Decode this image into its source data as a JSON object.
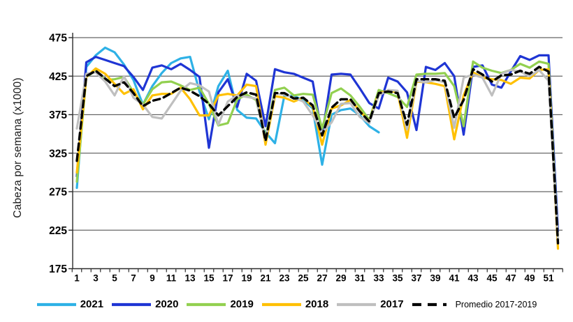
{
  "chart_data": {
    "type": "line",
    "title": "",
    "ylabel": "Cabeza por semana (x1000)",
    "xlabel": "",
    "ylim": [
      175,
      475
    ],
    "yticks": [
      175,
      225,
      275,
      325,
      375,
      425,
      475
    ],
    "xticks": [
      1,
      3,
      5,
      7,
      9,
      11,
      13,
      15,
      17,
      19,
      21,
      23,
      25,
      27,
      29,
      31,
      33,
      35,
      37,
      39,
      41,
      43,
      45,
      47,
      49,
      51
    ],
    "x": [
      1,
      2,
      3,
      4,
      5,
      6,
      7,
      8,
      9,
      10,
      11,
      12,
      13,
      14,
      15,
      16,
      17,
      18,
      19,
      20,
      21,
      22,
      23,
      24,
      25,
      26,
      27,
      28,
      29,
      30,
      31,
      32,
      33,
      34,
      35,
      36,
      37,
      38,
      39,
      40,
      41,
      42,
      43,
      44,
      45,
      46,
      47,
      48,
      49,
      50,
      51,
      52
    ],
    "grid": "horizontal",
    "legend_position": "bottom",
    "series": [
      {
        "name": "2021",
        "color": "#2EB1E6",
        "dash": false,
        "values": [
          280,
          437,
          452,
          462,
          456,
          440,
          420,
          388,
          412,
          429,
          442,
          448,
          450,
          405,
          369,
          412,
          432,
          381,
          371,
          370,
          352,
          338,
          400,
          399,
          394,
          383,
          310,
          375,
          381,
          383,
          374,
          360,
          352
        ]
      },
      {
        "name": "2020",
        "color": "#1F35D4",
        "dash": false,
        "values": [
          295,
          443,
          450,
          446,
          442,
          438,
          424,
          407,
          436,
          439,
          434,
          441,
          433,
          424,
          332,
          404,
          421,
          385,
          428,
          419,
          360,
          434,
          430,
          428,
          423,
          418,
          348,
          427,
          428,
          427,
          409,
          390,
          383,
          423,
          418,
          404,
          355,
          437,
          433,
          442,
          425,
          349,
          437,
          439,
          414,
          410,
          431,
          451,
          446,
          452,
          452,
          224
        ]
      },
      {
        "name": "2019",
        "color": "#92D050",
        "dash": false,
        "values": [
          288,
          424,
          432,
          420,
          421,
          424,
          404,
          388,
          408,
          417,
          418,
          413,
          407,
          410,
          389,
          361,
          364,
          395,
          401,
          394,
          345,
          407,
          410,
          400,
          402,
          401,
          357,
          403,
          409,
          400,
          385,
          368,
          407,
          403,
          398,
          385,
          427,
          428,
          428,
          429,
          412,
          360,
          444,
          436,
          432,
          429,
          433,
          441,
          436,
          444,
          441,
          212
        ]
      },
      {
        "name": "2018",
        "color": "#FFC000",
        "dash": false,
        "values": [
          300,
          424,
          435,
          428,
          415,
          402,
          408,
          382,
          400,
          402,
          402,
          410,
          395,
          374,
          374,
          400,
          402,
          400,
          414,
          412,
          336,
          399,
          397,
          392,
          397,
          385,
          336,
          383,
          387,
          394,
          380,
          366,
          403,
          406,
          404,
          345,
          418,
          417,
          415,
          412,
          343,
          400,
          430,
          423,
          421,
          420,
          415,
          423,
          422,
          433,
          434,
          201
        ]
      },
      {
        "name": "2017",
        "color": "#BFBFBF",
        "dash": false,
        "values": [
          357,
          428,
          430,
          418,
          400,
          425,
          397,
          388,
          372,
          370,
          388,
          406,
          416,
          413,
          405,
          362,
          392,
          400,
          398,
          396,
          342,
          403,
          401,
          397,
          392,
          374,
          352,
          365,
          389,
          390,
          372,
          364,
          400,
          407,
          406,
          356,
          419,
          417,
          420,
          417,
          358,
          423,
          427,
          423,
          400,
          428,
          433,
          431,
          425,
          433,
          419,
          212
        ]
      },
      {
        "name": "Promedio 2017-2019",
        "color": "#000000",
        "dash": true,
        "values": [
          315,
          425,
          432,
          422,
          412,
          417,
          403,
          386,
          393,
          396,
          403,
          410,
          406,
          399,
          389,
          374,
          386,
          398,
          404,
          401,
          341,
          403,
          403,
          396,
          397,
          387,
          348,
          384,
          395,
          395,
          379,
          366,
          403,
          405,
          403,
          362,
          421,
          421,
          421,
          419,
          371,
          394,
          434,
          427,
          418,
          426,
          427,
          432,
          428,
          437,
          431,
          208
        ]
      }
    ]
  },
  "colors": {
    "gridline": "#666666",
    "axis": "#2b2b2b",
    "tick_text": "#000000"
  }
}
